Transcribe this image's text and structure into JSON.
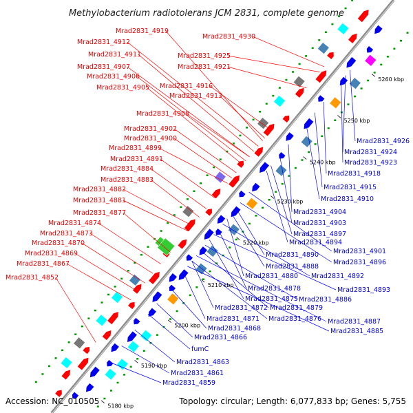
{
  "title": "Methylobacterium radiotolerans JCM 2831, complete genome",
  "footer": {
    "accession": "Accession: NC_010505",
    "topology": "Topology: circular; Length: 6,077,833 bp; Genes: 5,755"
  },
  "colors": {
    "forward": "#ff0000",
    "reverse": "#0000ee",
    "backbone": "#8c8c8c",
    "leader_forward": "#ff0000",
    "leader_reverse": "#0000ff",
    "dots": "#009900",
    "track_cyan": "#00ffff",
    "track_gray": "#777777",
    "track_orange": "#ff9900",
    "track_steel": "#4682b4",
    "track_green": "#33cc33",
    "track_magenta": "#ff00ff",
    "track_purple": "#7b68ee"
  },
  "ticks": [
    {
      "label": "5180 kbp"
    },
    {
      "label": "5190 kbp"
    },
    {
      "label": "5200 kbp"
    },
    {
      "label": "5210 kbp"
    },
    {
      "label": "5220 kbp"
    },
    {
      "label": "5230 kbp"
    },
    {
      "label": "5240 kbp"
    },
    {
      "label": "5250 kbp"
    },
    {
      "label": "5260 kbp"
    }
  ],
  "forward_genes": [
    {
      "label": "Mrad2831_4919"
    },
    {
      "label": "Mrad2831_4930"
    },
    {
      "label": "Mrad2831_4912"
    },
    {
      "label": "Mrad2831_4911"
    },
    {
      "label": "Mrad2831_4925"
    },
    {
      "label": "Mrad2831_4907"
    },
    {
      "label": "Mrad2831_4921"
    },
    {
      "label": "Mrad2831_4906"
    },
    {
      "label": "Mrad2831_4905"
    },
    {
      "label": "Mrad2831_4916"
    },
    {
      "label": "Mrad2831_4913"
    },
    {
      "label": "Mrad2831_4908"
    },
    {
      "label": "Mrad2831_4902"
    },
    {
      "label": "Mrad2831_4900"
    },
    {
      "label": "Mrad2831_4899"
    },
    {
      "label": "Mrad2831_4891"
    },
    {
      "label": "Mrad2831_4884"
    },
    {
      "label": "Mrad2831_4883"
    },
    {
      "label": "Mrad2831_4882"
    },
    {
      "label": "Mrad2831_4881"
    },
    {
      "label": "Mrad2831_4877"
    },
    {
      "label": "Mrad2831_4874"
    },
    {
      "label": "Mrad2831_4873"
    },
    {
      "label": "Mrad2831_4870"
    },
    {
      "label": "Mrad2831_4869"
    },
    {
      "label": "Mrad2831_4867"
    },
    {
      "label": "Mrad2831_4852"
    }
  ],
  "reverse_genes": [
    {
      "label": "Mrad2831_4926"
    },
    {
      "label": "Mrad2831_4924"
    },
    {
      "label": "Mrad2831_4923"
    },
    {
      "label": "Mrad2831_4918"
    },
    {
      "label": "Mrad2831_4915"
    },
    {
      "label": "Mrad2831_4910"
    },
    {
      "label": "Mrad2831_4904"
    },
    {
      "label": "Mrad2831_4903"
    },
    {
      "label": "Mrad2831_4897"
    },
    {
      "label": "Mrad2831_4894"
    },
    {
      "label": "Mrad2831_4901"
    },
    {
      "label": "Mrad2831_4896"
    },
    {
      "label": "Mrad2831_4890"
    },
    {
      "label": "Mrad2831_4888"
    },
    {
      "label": "Mrad2831_4880"
    },
    {
      "label": "Mrad2831_4892"
    },
    {
      "label": "Mrad2831_4878"
    },
    {
      "label": "Mrad2831_4893"
    },
    {
      "label": "Mrad2831_4875"
    },
    {
      "label": "Mrad2831_4886"
    },
    {
      "label": "Mrad2831_4872"
    },
    {
      "label": "Mrad2831_4879"
    },
    {
      "label": "Mrad2831_4871"
    },
    {
      "label": "Mrad2831_4876"
    },
    {
      "label": "Mrad2831_4887"
    },
    {
      "label": "Mrad2831_4868"
    },
    {
      "label": "Mrad2831_4885"
    },
    {
      "label": "Mrad2831_4866"
    },
    {
      "label": "fumC"
    },
    {
      "label": "Mrad2831_4863"
    },
    {
      "label": "Mrad2831_4861"
    },
    {
      "label": "Mrad2831_4859"
    }
  ]
}
